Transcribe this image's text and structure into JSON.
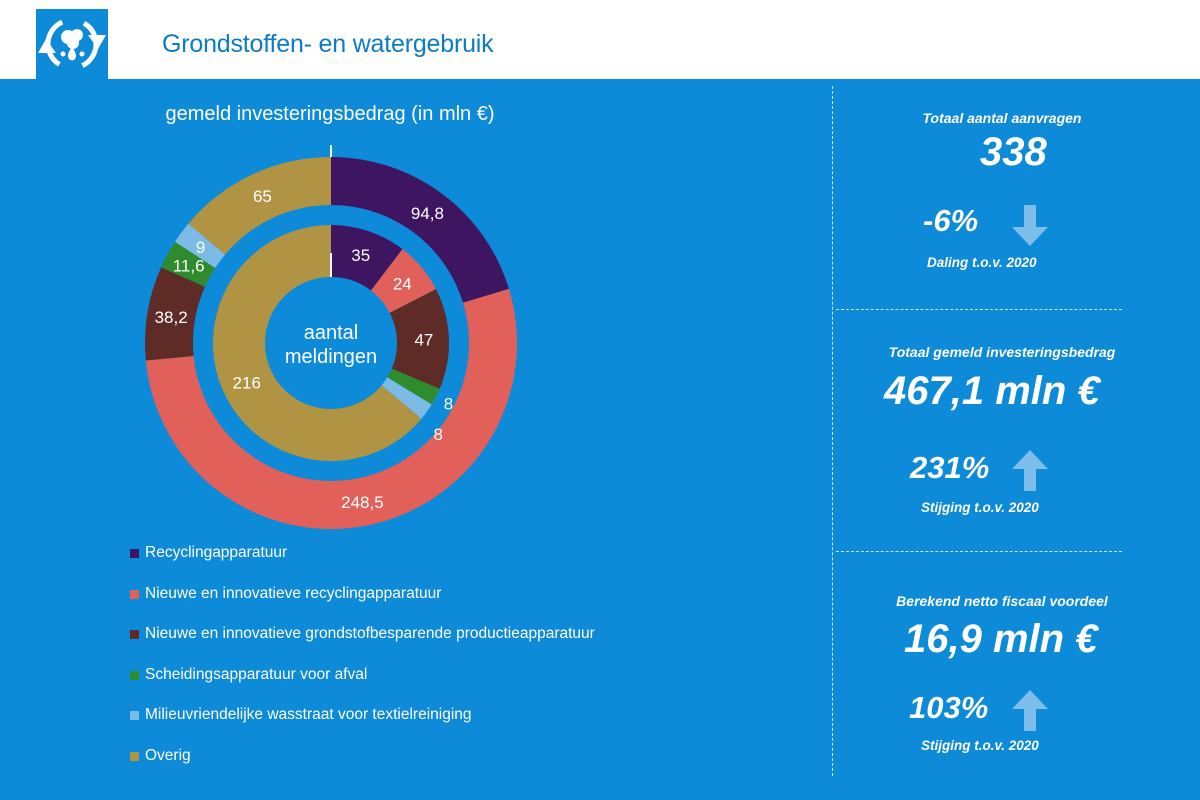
{
  "header": {
    "title": "Grondstoffen- en watergebruik",
    "logo_icon": "recycle-water-icon"
  },
  "chart_data": {
    "type": "donut",
    "title": "gemeld investeringsbedrag (in mln €)",
    "center_label": "aantal meldingen",
    "categories": [
      "Recyclingapparatuur",
      "Nieuwe en innovatieve recyclingapparatuur",
      "Nieuwe en innovatieve grondstofbesparende productieapparatuur",
      "Scheidingsapparatuur voor afval",
      "Milieuvriendelijke wasstraat voor textielreiniging",
      "Overig"
    ],
    "colors": [
      "#3d1561",
      "#e2605a",
      "#5e2b27",
      "#2e8b2e",
      "#7bbbe6",
      "#b09444"
    ],
    "series": [
      {
        "ring": "outer",
        "values": [
          94.8,
          248.5,
          38.2,
          11.6,
          9,
          65
        ],
        "labels": [
          "94,8",
          "248,5",
          "38,2",
          "11,6",
          "9",
          "65"
        ]
      },
      {
        "ring": "inner",
        "values": [
          35,
          24,
          47,
          8,
          8,
          216
        ],
        "labels": [
          "35",
          "24",
          "47",
          "8",
          "8",
          "216"
        ]
      }
    ]
  },
  "kpis": {
    "requests": {
      "label": "Totaal aantal aanvragen",
      "value": "338",
      "change": "-6%",
      "change_text": "Daling t.o.v. 2020",
      "direction": "down"
    },
    "investment": {
      "label": "Totaal gemeld investeringsbedrag",
      "value": "467,1 mln €",
      "change": "231%",
      "change_text": "Stijging t.o.v. 2020",
      "direction": "up"
    },
    "benefit": {
      "label": "Berekend netto fiscaal voordeel",
      "value": "16,9 mln €",
      "change": "103%",
      "change_text": "Stijging t.o.v. 2020",
      "direction": "up"
    }
  },
  "arrow_color": "#7dbdea"
}
